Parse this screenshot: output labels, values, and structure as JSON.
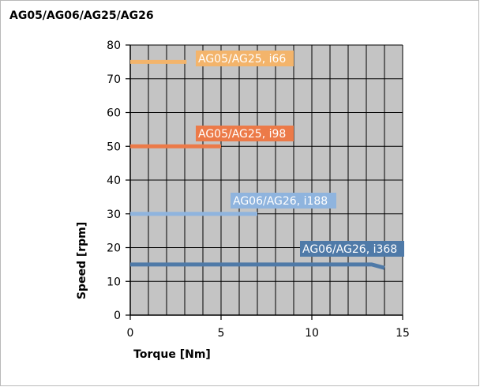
{
  "chart_data": {
    "type": "line",
    "title": "AG05/AG06/AG25/AG26",
    "xlabel": "Torque [Nm]",
    "ylabel": "Speed [rpm]",
    "xlim": [
      0,
      15
    ],
    "ylim": [
      0,
      80
    ],
    "x_ticks": [
      0,
      5,
      10,
      15
    ],
    "y_ticks": [
      0,
      10,
      20,
      30,
      40,
      50,
      60,
      70,
      80
    ],
    "grid": true,
    "series": [
      {
        "name": "AG05/AG25, i66",
        "color": "#f3b46b",
        "points": [
          [
            0,
            75
          ],
          [
            3.1,
            75
          ]
        ]
      },
      {
        "name": "AG05/AG25, i98",
        "color": "#ec7a48",
        "points": [
          [
            0,
            50
          ],
          [
            5.0,
            50
          ]
        ]
      },
      {
        "name": "AG06/AG26, i188",
        "color": "#8fb4de",
        "points": [
          [
            0,
            30
          ],
          [
            7.0,
            30
          ]
        ]
      },
      {
        "name": "AG06/AG26, i368",
        "color": "#4f7aa8",
        "points": [
          [
            0,
            15
          ],
          [
            13.3,
            15
          ],
          [
            14.0,
            14
          ]
        ]
      }
    ]
  }
}
